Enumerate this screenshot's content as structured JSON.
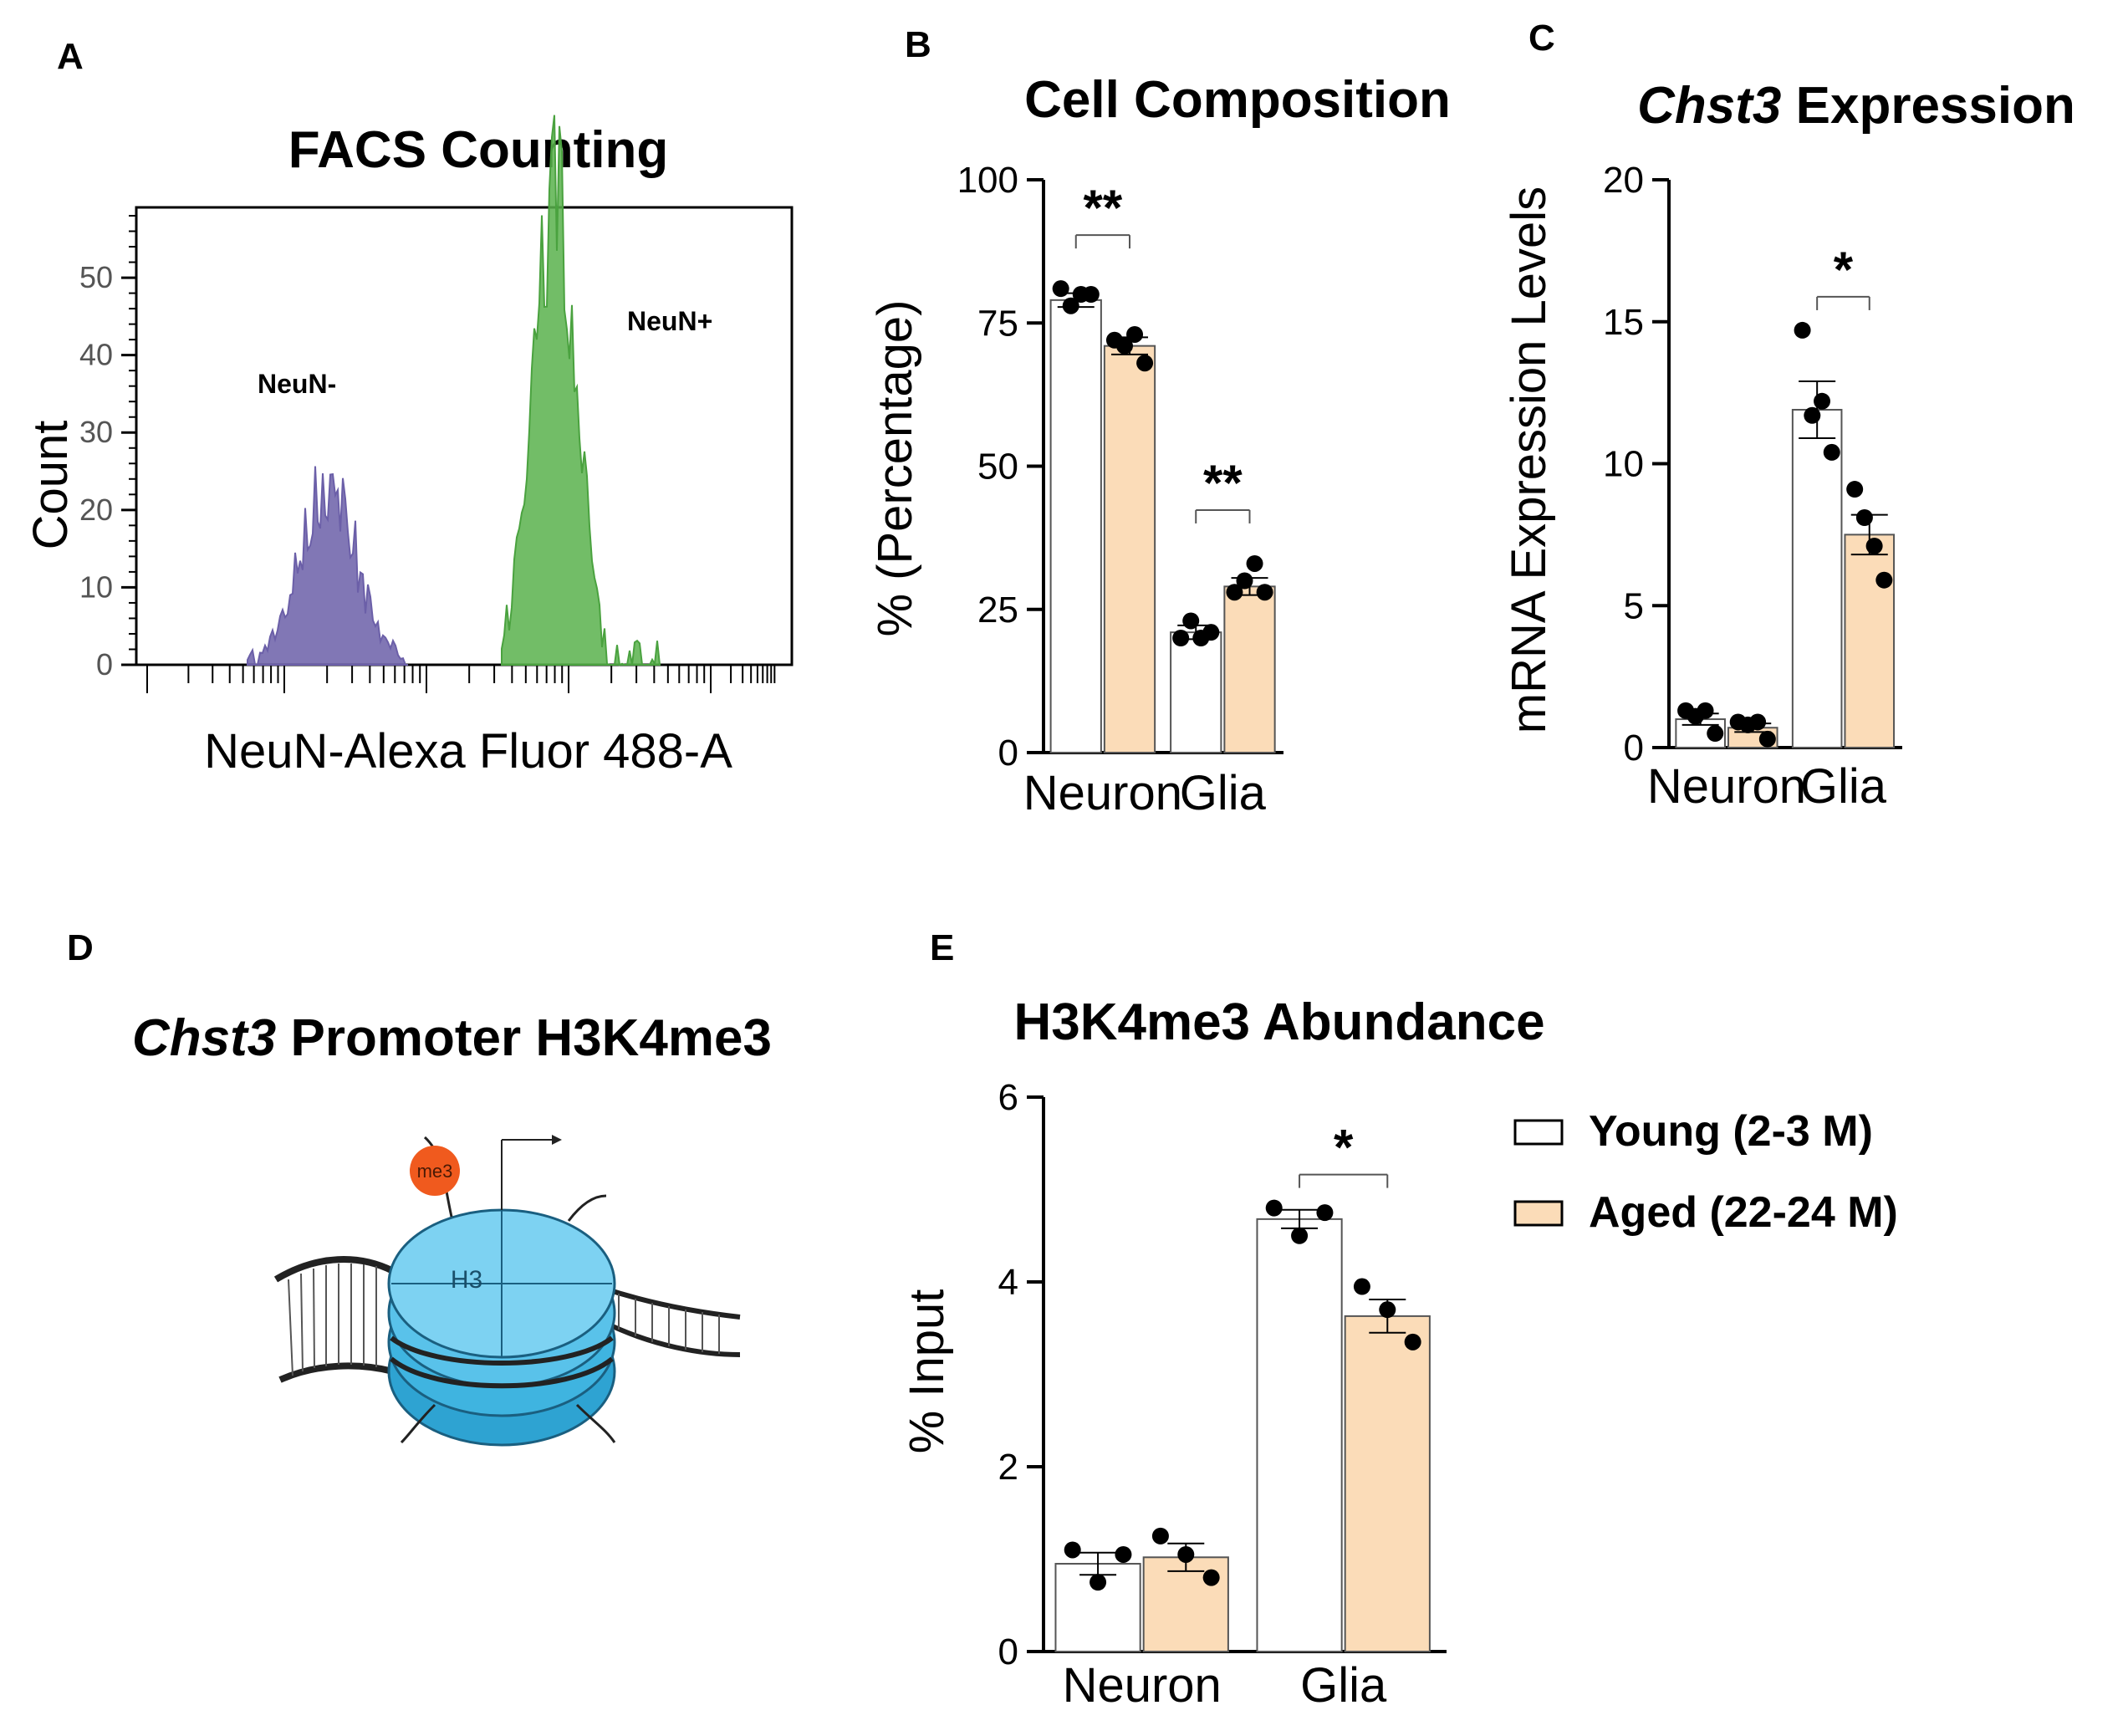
{
  "colors": {
    "young": "#ffffff",
    "aged": "#fbdcb8",
    "neun_neg": "#6b5fa8",
    "neun_pos": "#59b14c",
    "nucleosome": "#3fb4e0",
    "me3": "#f05a1e",
    "axis": "#000000"
  },
  "legend": {
    "young": "Young (2-3 M)",
    "aged": "Aged (22-24 M)"
  },
  "panel_a": {
    "letter": "A",
    "title": "FACS Counting",
    "ylabel": "Count",
    "xlabel": "NeuN-Alexa Fluor 488-A",
    "yticks": [
      "0",
      "10",
      "20",
      "30",
      "40",
      "50"
    ],
    "neg_label": "NeuN-",
    "pos_label": "NeuN+"
  },
  "panel_d": {
    "letter": "D",
    "title_italic": "Chst3",
    "title_rest": " Promoter H3K4me3",
    "h3_label": "H3",
    "me3_label": "me3"
  },
  "chart_data": [
    {
      "id": "B",
      "letter": "B",
      "type": "bar",
      "title": "Cell Composition",
      "title_italic": "",
      "ylabel": "% (Percentage)",
      "ylim": [
        0,
        100
      ],
      "yticks": [
        0,
        25,
        50,
        75,
        100
      ],
      "categories": [
        "Neuron",
        "Glia"
      ],
      "series": [
        {
          "name": "Young (2-3 M)",
          "values": [
            79,
            21
          ],
          "sem": [
            1.2,
            1.2
          ],
          "points": [
            [
              81,
              78,
              80,
              80
            ],
            [
              20,
              23,
              20,
              21
            ]
          ]
        },
        {
          "name": "Aged (22-24 M)",
          "values": [
            71,
            29
          ],
          "sem": [
            1.5,
            1.5
          ],
          "points": [
            [
              72,
              71,
              73,
              68
            ],
            [
              28,
              30,
              33,
              28
            ]
          ]
        }
      ],
      "significance": [
        {
          "category": "Neuron",
          "label": "**"
        },
        {
          "category": "Glia",
          "label": "**"
        }
      ]
    },
    {
      "id": "C",
      "letter": "C",
      "type": "bar",
      "title": " Expression",
      "title_italic": "Chst3",
      "ylabel": "mRNA Expression Levels",
      "ylim": [
        0,
        20
      ],
      "yticks": [
        0,
        5,
        10,
        15,
        20
      ],
      "categories": [
        "Neuron",
        "Glia"
      ],
      "series": [
        {
          "name": "Young (2-3 M)",
          "values": [
            1.0,
            11.9
          ],
          "sem": [
            0.2,
            1.0
          ],
          "points": [
            [
              1.3,
              1.1,
              1.3,
              0.5
            ],
            [
              14.7,
              11.7,
              12.2,
              10.4
            ]
          ]
        },
        {
          "name": "Aged (22-24 M)",
          "values": [
            0.7,
            7.5
          ],
          "sem": [
            0.15,
            0.7
          ],
          "points": [
            [
              0.9,
              0.8,
              0.9,
              0.3
            ],
            [
              9.1,
              8.1,
              7.1,
              5.9
            ]
          ]
        }
      ],
      "significance": [
        {
          "category": "Glia",
          "label": "*"
        }
      ]
    },
    {
      "id": "E",
      "letter": "E",
      "type": "bar",
      "title": "H3K4me3 Abundance",
      "title_italic": "",
      "ylabel": "% Input",
      "ylim": [
        0,
        6
      ],
      "yticks": [
        0,
        2,
        4,
        6
      ],
      "categories": [
        "Neuron",
        "Glia"
      ],
      "series": [
        {
          "name": "Young (2-3 M)",
          "values": [
            0.95,
            4.68
          ],
          "sem": [
            0.12,
            0.1
          ],
          "points": [
            [
              1.1,
              0.75,
              1.05
            ],
            [
              4.8,
              4.5,
              4.75
            ]
          ]
        },
        {
          "name": "Aged (22-24 M)",
          "values": [
            1.02,
            3.63
          ],
          "sem": [
            0.15,
            0.18
          ],
          "points": [
            [
              1.25,
              1.05,
              0.8
            ],
            [
              3.95,
              3.7,
              3.35
            ]
          ]
        }
      ],
      "significance": [
        {
          "category": "Glia",
          "label": "*"
        }
      ]
    }
  ]
}
